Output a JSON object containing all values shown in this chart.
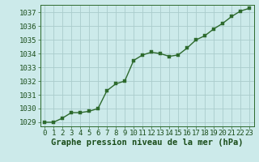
{
  "x": [
    0,
    1,
    2,
    3,
    4,
    5,
    6,
    7,
    8,
    9,
    10,
    11,
    12,
    13,
    14,
    15,
    16,
    17,
    18,
    19,
    20,
    21,
    22,
    23
  ],
  "y": [
    1029.0,
    1029.0,
    1029.3,
    1029.7,
    1029.7,
    1029.8,
    1030.0,
    1031.3,
    1031.8,
    1032.0,
    1033.5,
    1033.9,
    1034.1,
    1034.0,
    1033.8,
    1033.9,
    1034.4,
    1035.0,
    1035.3,
    1035.8,
    1036.2,
    1036.7,
    1037.1,
    1037.3
  ],
  "line_color": "#2d6a2d",
  "marker_color": "#2d6a2d",
  "bg_color": "#cceaea",
  "grid_color": "#aacccc",
  "xlabel": "Graphe pression niveau de la mer (hPa)",
  "xlabel_color": "#1a4d1a",
  "tick_color": "#1a4d1a",
  "axis_color": "#2d6a2d",
  "ylim": [
    1028.7,
    1037.55
  ],
  "xlim": [
    -0.5,
    23.5
  ],
  "yticks": [
    1029,
    1030,
    1031,
    1032,
    1033,
    1034,
    1035,
    1036,
    1037
  ],
  "xticks": [
    0,
    1,
    2,
    3,
    4,
    5,
    6,
    7,
    8,
    9,
    10,
    11,
    12,
    13,
    14,
    15,
    16,
    17,
    18,
    19,
    20,
    21,
    22,
    23
  ],
  "tick_fontsize": 6.5,
  "xlabel_fontsize": 7.5,
  "marker_size": 2.8,
  "line_width": 1.0
}
